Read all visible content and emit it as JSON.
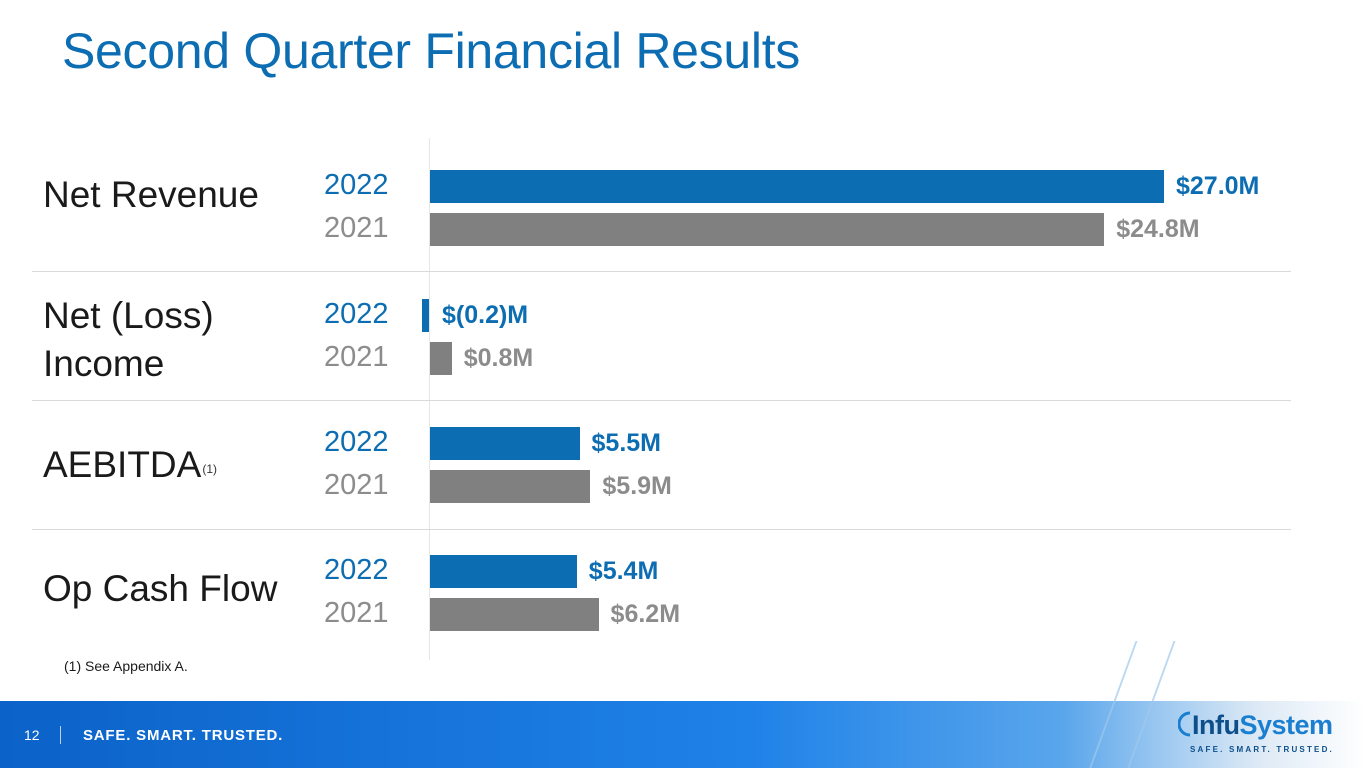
{
  "slide": {
    "title": "Second Quarter Financial Results",
    "footnote": "(1) See Appendix A.",
    "page_number": "12",
    "tagline": "SAFE. SMART. TRUSTED.",
    "logo": {
      "name": "InfuSystem",
      "tagline": "SAFE. SMART. TRUSTED."
    }
  },
  "colors": {
    "current": "#0c6db2",
    "prior": "#808080",
    "title": "#0c6db2"
  },
  "chart_data": {
    "type": "bar",
    "orientation": "horizontal",
    "unit": "$M",
    "years": [
      "2022",
      "2021"
    ],
    "categories": [
      {
        "label": "Net Revenue",
        "sup": ""
      },
      {
        "label_lines": [
          "Net (Loss)",
          "Income"
        ],
        "sup": ""
      },
      {
        "label": "AEBITDA",
        "sup": "(1)"
      },
      {
        "label": "Op Cash Flow",
        "sup": ""
      }
    ],
    "series": [
      {
        "year": "2022",
        "values": [
          27.0,
          -0.2,
          5.5,
          5.4
        ],
        "labels": [
          "$27.0M",
          "$(0.2)M",
          "$5.5M",
          "$5.4M"
        ]
      },
      {
        "year": "2021",
        "values": [
          24.8,
          0.8,
          5.9,
          6.2
        ],
        "labels": [
          "$24.8M",
          "$0.8M",
          "$5.9M",
          "$6.2M"
        ]
      }
    ],
    "legend": "none",
    "grid": false
  }
}
